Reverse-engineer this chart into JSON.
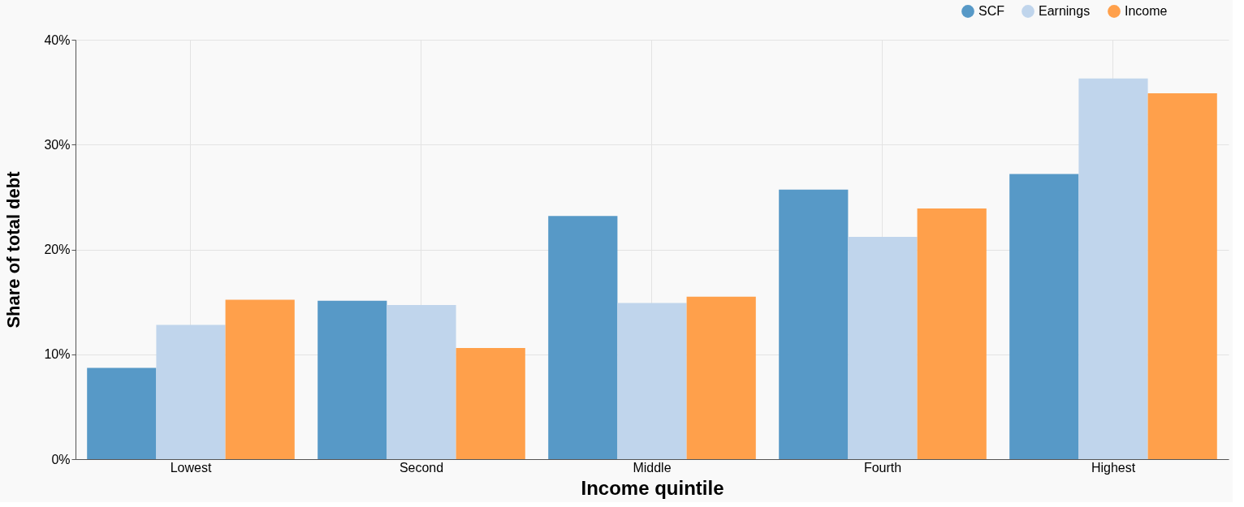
{
  "chart_data": {
    "type": "bar",
    "xlabel": "Income quintile",
    "ylabel": "Share of total debt",
    "categories": [
      "Lowest",
      "Second",
      "Middle",
      "Fourth",
      "Highest"
    ],
    "series": [
      {
        "name": "SCF",
        "color": "#5799c7",
        "values": [
          8.7,
          15.1,
          23.2,
          25.7,
          27.2
        ]
      },
      {
        "name": "Earnings",
        "color": "#c0d5ec",
        "values": [
          12.8,
          14.7,
          14.9,
          21.2,
          36.3
        ]
      },
      {
        "name": "Income",
        "color": "#ffa04b",
        "values": [
          15.2,
          10.6,
          15.5,
          23.9,
          34.9
        ]
      }
    ],
    "ylim": [
      0,
      40
    ],
    "yticks": [
      {
        "value": 0,
        "label": "0%"
      },
      {
        "value": 10,
        "label": "10%"
      },
      {
        "value": 20,
        "label": "20%"
      },
      {
        "value": 30,
        "label": "30%"
      },
      {
        "value": 40,
        "label": "40%"
      }
    ],
    "grid": true,
    "legend": "top right"
  }
}
